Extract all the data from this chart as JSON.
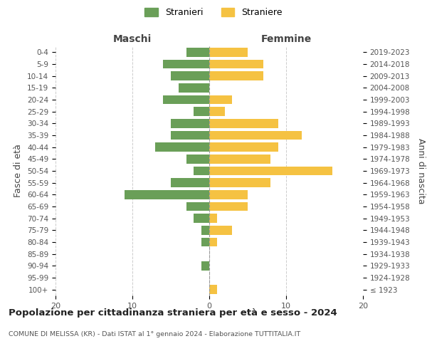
{
  "age_groups": [
    "100+",
    "95-99",
    "90-94",
    "85-89",
    "80-84",
    "75-79",
    "70-74",
    "65-69",
    "60-64",
    "55-59",
    "50-54",
    "45-49",
    "40-44",
    "35-39",
    "30-34",
    "25-29",
    "20-24",
    "15-19",
    "10-14",
    "5-9",
    "0-4"
  ],
  "birth_years": [
    "≤ 1923",
    "1924-1928",
    "1929-1933",
    "1934-1938",
    "1939-1943",
    "1944-1948",
    "1949-1953",
    "1954-1958",
    "1959-1963",
    "1964-1968",
    "1969-1973",
    "1974-1978",
    "1979-1983",
    "1984-1988",
    "1989-1993",
    "1994-1998",
    "1999-2003",
    "2004-2008",
    "2009-2013",
    "2014-2018",
    "2019-2023"
  ],
  "males": [
    0,
    0,
    1,
    0,
    1,
    1,
    2,
    3,
    11,
    5,
    2,
    3,
    7,
    5,
    5,
    2,
    6,
    4,
    5,
    6,
    3
  ],
  "females": [
    1,
    0,
    0,
    0,
    1,
    3,
    1,
    5,
    5,
    8,
    16,
    8,
    9,
    12,
    9,
    2,
    3,
    0,
    7,
    7,
    5
  ],
  "male_color": "#6a9f58",
  "female_color": "#f5c242",
  "background_color": "#ffffff",
  "grid_color": "#cccccc",
  "title": "Popolazione per cittadinanza straniera per età e sesso - 2024",
  "subtitle": "COMUNE DI MELISSA (KR) - Dati ISTAT al 1° gennaio 2024 - Elaborazione TUTTITALIA.IT",
  "legend_male": "Stranieri",
  "legend_female": "Straniere",
  "header_left": "Maschi",
  "header_right": "Femmine",
  "ylabel_left": "Fasce di età",
  "ylabel_right": "Anni di nascita",
  "xlim": 20
}
